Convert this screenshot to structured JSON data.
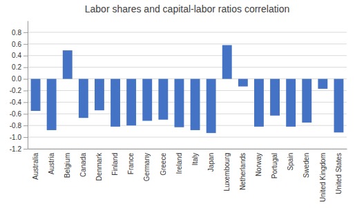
{
  "chart_data": {
    "type": "bar",
    "title": "Labor shares and capital-labor ratios correlation",
    "categories": [
      "Australia",
      "Austria",
      "Belgium",
      "Canada",
      "Denmark",
      "Finland",
      "France",
      "Germany",
      "Greece",
      "Ireland",
      "Italy",
      "Japan",
      "Luxembourg",
      "Netherlands",
      "Norway",
      "Portugal",
      "Spain",
      "Sweden",
      "United Kingdom",
      "United States"
    ],
    "values": [
      -0.55,
      -0.88,
      0.49,
      -0.67,
      -0.54,
      -0.82,
      -0.8,
      -0.72,
      -0.7,
      -0.83,
      -0.88,
      -0.93,
      0.58,
      -0.13,
      -0.82,
      -0.63,
      -0.82,
      -0.75,
      -0.17,
      -0.92
    ],
    "color": "#4472C4",
    "ylim": [
      -1.2,
      1.0
    ],
    "yticks": [
      {
        "value": -1.2,
        "label": "-1.2"
      },
      {
        "value": -1.0,
        "label": "-1.0"
      },
      {
        "value": -0.8,
        "label": "-0.8"
      },
      {
        "value": -0.6,
        "label": "-0.6"
      },
      {
        "value": -0.4,
        "label": "-0.4"
      },
      {
        "value": -0.2,
        "label": "-0.2"
      },
      {
        "value": 0.0,
        "label": "0.0"
      },
      {
        "value": 0.2,
        "label": "0.2"
      },
      {
        "value": 0.4,
        "label": "0.4"
      },
      {
        "value": 0.6,
        "label": "0.6"
      },
      {
        "value": 0.8,
        "label": "0.8"
      }
    ],
    "grid": true
  }
}
